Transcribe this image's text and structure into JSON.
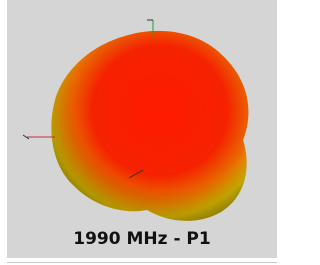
{
  "caption": "1990 MHz - P1"
}
